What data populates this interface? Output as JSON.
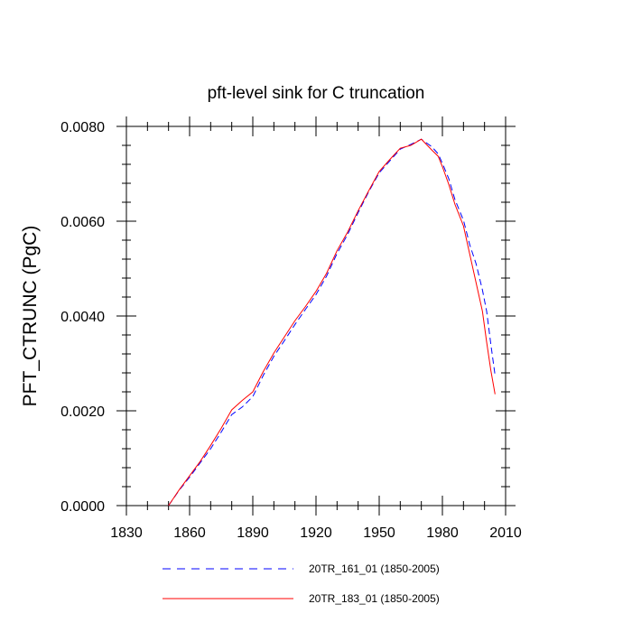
{
  "chart_data": {
    "type": "line",
    "title": "pft-level sink for C truncation",
    "xlabel": "",
    "ylabel": "PFT_CTRUNC  (PgC)",
    "xlim": [
      1830,
      2010
    ],
    "ylim": [
      0,
      0.008
    ],
    "x_ticks": [
      1830,
      1860,
      1890,
      1920,
      1950,
      1980,
      2010
    ],
    "x_tick_labels": [
      "1830",
      "1860",
      "1890",
      "1920",
      "1950",
      "1980",
      "2010"
    ],
    "y_ticks": [
      0,
      0.002,
      0.004,
      0.006,
      0.008
    ],
    "y_tick_labels": [
      "0.0000",
      "0.0020",
      "0.0040",
      "0.0060",
      "0.0080"
    ],
    "grid": false,
    "series": [
      {
        "name": "20TR_161_01 (1850-2005)",
        "color": "#0000ff",
        "style": "dashed",
        "x": [
          1850,
          1855,
          1860,
          1865,
          1870,
          1875,
          1880,
          1885,
          1890,
          1895,
          1900,
          1905,
          1910,
          1915,
          1920,
          1925,
          1930,
          1935,
          1940,
          1945,
          1950,
          1955,
          1960,
          1965,
          1970,
          1975,
          1978,
          1980,
          1983,
          1986,
          1990,
          1993,
          1996,
          1999,
          2001,
          2003,
          2005
        ],
        "values": [
          0,
          0.00032,
          0.0006,
          0.0009,
          0.0012,
          0.00155,
          0.00192,
          0.00208,
          0.0023,
          0.00275,
          0.00315,
          0.00348,
          0.00382,
          0.00414,
          0.00445,
          0.00484,
          0.00532,
          0.00572,
          0.00618,
          0.00662,
          0.00702,
          0.00727,
          0.00752,
          0.00762,
          0.00773,
          0.00757,
          0.00742,
          0.00722,
          0.0069,
          0.00645,
          0.00602,
          0.0055,
          0.0051,
          0.00455,
          0.0041,
          0.0034,
          0.00275
        ]
      },
      {
        "name": "20TR_183_01 (1850-2005)",
        "color": "#ff0000",
        "style": "solid",
        "x": [
          1850,
          1855,
          1860,
          1865,
          1870,
          1875,
          1880,
          1885,
          1890,
          1895,
          1900,
          1905,
          1910,
          1915,
          1920,
          1925,
          1930,
          1935,
          1940,
          1945,
          1950,
          1955,
          1960,
          1965,
          1970,
          1975,
          1978,
          1980,
          1983,
          1986,
          1990,
          1993,
          1996,
          1999,
          2001,
          2003,
          2005
        ],
        "values": [
          0,
          0.00033,
          0.00063,
          0.00093,
          0.00127,
          0.00163,
          0.00202,
          0.00222,
          0.0024,
          0.00283,
          0.00322,
          0.00356,
          0.0039,
          0.0042,
          0.00452,
          0.0049,
          0.00538,
          0.00577,
          0.00622,
          0.00664,
          0.00705,
          0.0073,
          0.00754,
          0.0076,
          0.00773,
          0.0075,
          0.00737,
          0.00715,
          0.00678,
          0.00635,
          0.0059,
          0.0053,
          0.0047,
          0.0041,
          0.00345,
          0.00285,
          0.00235
        ]
      }
    ],
    "legend": {
      "placement": "bottom",
      "entries": [
        "20TR_161_01 (1850-2005)",
        "20TR_183_01 (1850-2005)"
      ]
    }
  }
}
